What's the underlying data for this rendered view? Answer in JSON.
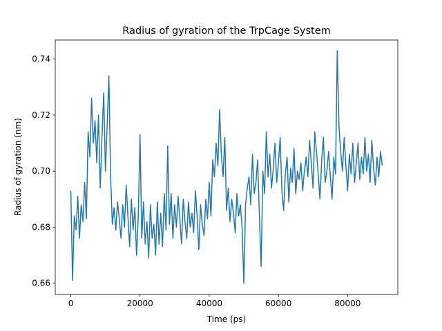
{
  "chart_data": {
    "type": "line",
    "title": "Radius of gyration of the TrpCage System",
    "xlabel": "Time (ps)",
    "ylabel": "Radius of gyration (nm)",
    "xlim": [
      -4500,
      94500
    ],
    "ylim": [
      0.656,
      0.7468
    ],
    "xticks": [
      0,
      20000,
      40000,
      60000,
      80000
    ],
    "xtick_labels": [
      "0",
      "20000",
      "40000",
      "60000",
      "80000"
    ],
    "yticks": [
      0.66,
      0.68,
      0.7,
      0.72,
      0.74
    ],
    "ytick_labels": [
      "0.66",
      "0.68",
      "0.70",
      "0.72",
      "0.74"
    ],
    "grid": false,
    "series": [
      {
        "name": "",
        "color": "#1f77b4",
        "x": [
          0,
          500,
          1000,
          1500,
          2000,
          2500,
          3000,
          3500,
          4000,
          4500,
          5000,
          5500,
          6000,
          6500,
          7000,
          7500,
          8000,
          8500,
          9000,
          9500,
          10000,
          10500,
          11000,
          11500,
          12000,
          12500,
          13000,
          13500,
          14000,
          14500,
          15000,
          15500,
          16000,
          16500,
          17000,
          17500,
          18000,
          18500,
          19000,
          19500,
          20000,
          20500,
          21000,
          21500,
          22000,
          22500,
          23000,
          23500,
          24000,
          24500,
          25000,
          25500,
          26000,
          26500,
          27000,
          27500,
          28000,
          28500,
          29000,
          29500,
          30000,
          30500,
          31000,
          31500,
          32000,
          32500,
          33000,
          33500,
          34000,
          34500,
          35000,
          35500,
          36000,
          36500,
          37000,
          37500,
          38000,
          38500,
          39000,
          39500,
          40000,
          40500,
          41000,
          41500,
          42000,
          42500,
          43000,
          43500,
          44000,
          44500,
          45000,
          45500,
          46000,
          46500,
          47000,
          47500,
          48000,
          48500,
          49000,
          49500,
          50000,
          50500,
          51000,
          51500,
          52000,
          52500,
          53000,
          53500,
          54000,
          54500,
          55000,
          55500,
          56000,
          56500,
          57000,
          57500,
          58000,
          58500,
          59000,
          59500,
          60000,
          60500,
          61000,
          61500,
          62000,
          62500,
          63000,
          63500,
          64000,
          64500,
          65000,
          65500,
          66000,
          66500,
          67000,
          67500,
          68000,
          68500,
          69000,
          69500,
          70000,
          70500,
          71000,
          71500,
          72000,
          72500,
          73000,
          73500,
          74000,
          74500,
          75000,
          75500,
          76000,
          76500,
          77000,
          77500,
          78000,
          78500,
          79000,
          79500,
          80000,
          80500,
          81000,
          81500,
          82000,
          82500,
          83000,
          83500,
          84000,
          84500,
          85000,
          85500,
          86000,
          86500,
          87000,
          87500,
          88000,
          88500,
          89000,
          89500,
          90000
        ],
        "values": [
          0.693,
          0.661,
          0.684,
          0.679,
          0.691,
          0.676,
          0.688,
          0.682,
          0.696,
          0.683,
          0.714,
          0.705,
          0.726,
          0.71,
          0.718,
          0.703,
          0.72,
          0.694,
          0.712,
          0.728,
          0.7,
          0.716,
          0.734,
          0.698,
          0.681,
          0.687,
          0.679,
          0.689,
          0.683,
          0.676,
          0.688,
          0.68,
          0.695,
          0.684,
          0.673,
          0.69,
          0.679,
          0.687,
          0.67,
          0.684,
          0.713,
          0.676,
          0.689,
          0.674,
          0.682,
          0.669,
          0.688,
          0.676,
          0.681,
          0.67,
          0.689,
          0.674,
          0.685,
          0.673,
          0.692,
          0.679,
          0.709,
          0.681,
          0.692,
          0.676,
          0.688,
          0.68,
          0.691,
          0.683,
          0.674,
          0.69,
          0.682,
          0.676,
          0.689,
          0.68,
          0.685,
          0.678,
          0.693,
          0.684,
          0.672,
          0.688,
          0.681,
          0.677,
          0.69,
          0.683,
          0.696,
          0.684,
          0.704,
          0.698,
          0.71,
          0.702,
          0.722,
          0.706,
          0.698,
          0.712,
          0.686,
          0.694,
          0.682,
          0.69,
          0.685,
          0.678,
          0.692,
          0.684,
          0.688,
          0.68,
          0.66,
          0.688,
          0.694,
          0.698,
          0.688,
          0.706,
          0.692,
          0.696,
          0.704,
          0.684,
          0.666,
          0.7,
          0.692,
          0.714,
          0.698,
          0.706,
          0.694,
          0.701,
          0.71,
          0.696,
          0.703,
          0.712,
          0.693,
          0.686,
          0.699,
          0.705,
          0.689,
          0.701,
          0.696,
          0.708,
          0.692,
          0.7,
          0.697,
          0.703,
          0.693,
          0.7,
          0.705,
          0.698,
          0.711,
          0.703,
          0.694,
          0.714,
          0.707,
          0.699,
          0.69,
          0.704,
          0.712,
          0.696,
          0.7,
          0.707,
          0.698,
          0.69,
          0.705,
          0.699,
          0.743,
          0.716,
          0.707,
          0.7,
          0.712,
          0.702,
          0.693,
          0.706,
          0.699,
          0.71,
          0.696,
          0.703,
          0.71,
          0.697,
          0.705,
          0.699,
          0.712,
          0.7,
          0.706,
          0.696,
          0.711,
          0.701,
          0.695,
          0.705,
          0.698,
          0.707,
          0.702
        ]
      }
    ]
  }
}
